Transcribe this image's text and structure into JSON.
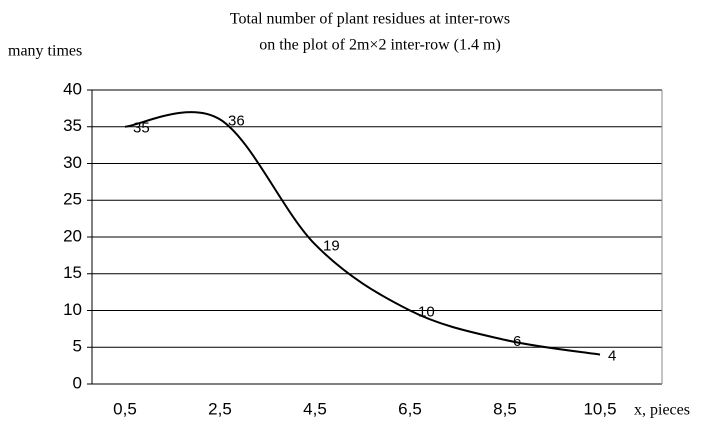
{
  "chart_data": {
    "type": "line",
    "title": "Total number of plant residues at inter-rows",
    "subtitle": "on the plot of 2m×2 inter-row (1.4 m)",
    "y_label": "many times",
    "x_label": "x, pieces",
    "categories": [
      "0,5",
      "2,5",
      "4,5",
      "6,5",
      "8,5",
      "10,5"
    ],
    "series": [
      {
        "name": "plant residues",
        "color": "#000000",
        "values": [
          35,
          36,
          19,
          10,
          6,
          4
        ]
      }
    ],
    "ylim": [
      0,
      40
    ],
    "yticks": [
      0,
      5,
      10,
      15,
      20,
      25,
      30,
      35,
      40
    ],
    "grid": true,
    "smooth": true
  }
}
